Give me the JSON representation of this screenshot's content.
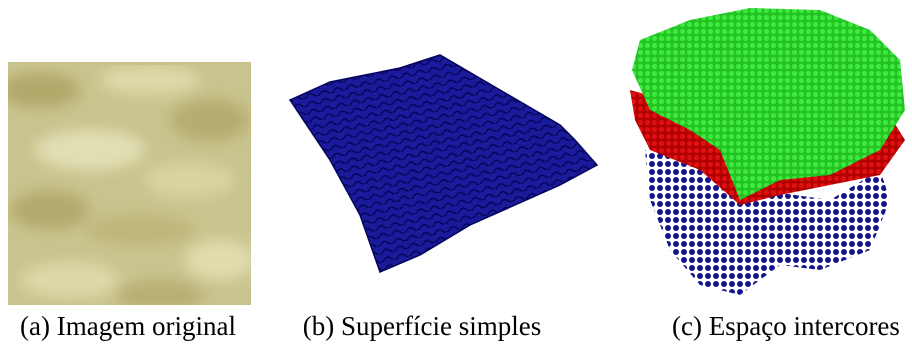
{
  "figures": [
    {
      "caption": "(a) Imagem original"
    },
    {
      "caption": "(b) Superfície simples"
    },
    {
      "caption": "(c) Espaço intercores"
    }
  ]
}
